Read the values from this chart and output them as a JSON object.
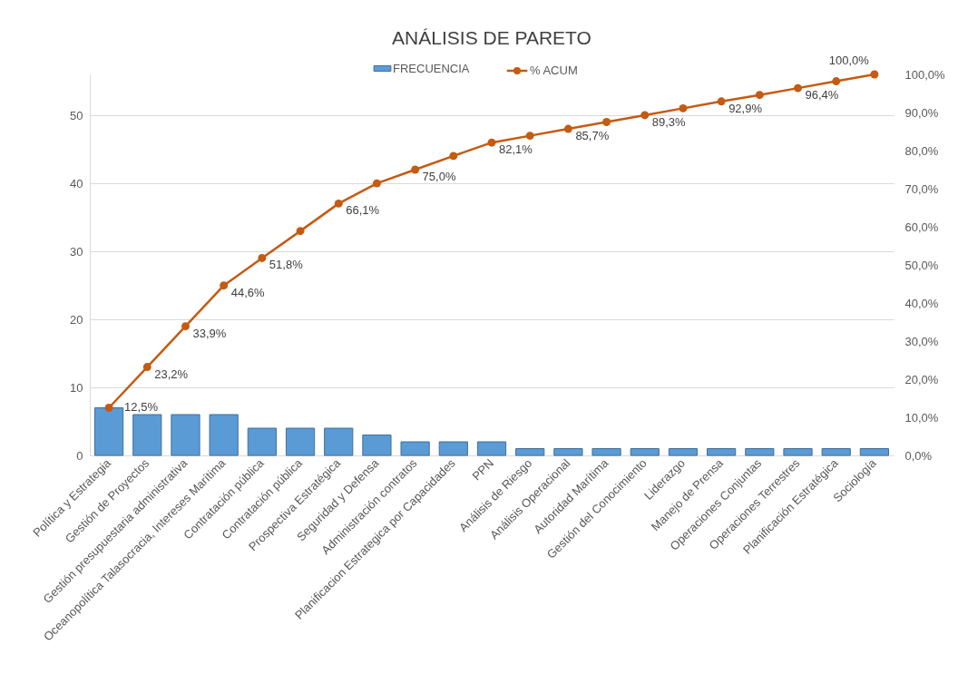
{
  "chart_data": {
    "type": "bar",
    "title": "ANÁLISIS DE PARETO",
    "categories": [
      "Política y Estrategia",
      "Gestión de Proyectos",
      "Gestión presupuestaria administrativa",
      "Oceanopolítica Talasocracia, Intereses Marítima",
      "Contratación pública",
      "Contratación pública",
      "Prospectiva Estratégica",
      "Seguridad y Defensa",
      "Administración contratos",
      "Planificacion Estrategica por Capacidades",
      "PPN",
      "Análisis de Riesgo",
      "Análisis Operacional",
      "Autoridad Marítima",
      "Gestión del Conocimiento",
      "Liderazgo",
      "Manejo de Prensa",
      "Operaciones Conjuntas",
      "Operaciones Terrestres",
      "Planificación Estratégica",
      "Sociología"
    ],
    "series": [
      {
        "name": "FRECUENCIA",
        "color": "#5b9bd5",
        "values": [
          7,
          6,
          6,
          6,
          4,
          4,
          4,
          3,
          2,
          2,
          2,
          1,
          1,
          1,
          1,
          1,
          1,
          1,
          1,
          1,
          1
        ]
      },
      {
        "name": "% ACUM",
        "type": "line",
        "axis": "y2",
        "color": "#c55a11",
        "marker": "circle",
        "line_style": "solid",
        "values": [
          12.5,
          23.2,
          33.9,
          44.6,
          51.8,
          58.9,
          66.1,
          71.4,
          75.0,
          78.6,
          82.1,
          83.9,
          85.7,
          87.5,
          89.3,
          91.1,
          92.9,
          94.6,
          96.4,
          98.2,
          100.0
        ],
        "value_labels": [
          "12,5%",
          "23,2%",
          "33,9%",
          "44,6%",
          "51,8%",
          null,
          "66,1%",
          null,
          "75,0%",
          null,
          "82,1%",
          null,
          "85,7%",
          null,
          "89,3%",
          null,
          "92,9%",
          null,
          "96,4%",
          null,
          "100,0%"
        ]
      }
    ],
    "ylim": [
      0,
      56
    ],
    "yticks": [
      0,
      10,
      20,
      30,
      40,
      50
    ],
    "y2lim": [
      0,
      100
    ],
    "y2ticks": [
      {
        "value": 0,
        "label": "0,0%"
      },
      {
        "value": 10,
        "label": "10,0%"
      },
      {
        "value": 20,
        "label": "20,0%"
      },
      {
        "value": 30,
        "label": "30,0%"
      },
      {
        "value": 40,
        "label": "40,0%"
      },
      {
        "value": 50,
        "label": "50,0%"
      },
      {
        "value": 60,
        "label": "60,0%"
      },
      {
        "value": 70,
        "label": "70,0%"
      },
      {
        "value": 80,
        "label": "80,0%"
      },
      {
        "value": 90,
        "label": "90,0%"
      },
      {
        "value": 100,
        "label": "100,0%"
      }
    ],
    "grid": "y",
    "legend": "top"
  }
}
